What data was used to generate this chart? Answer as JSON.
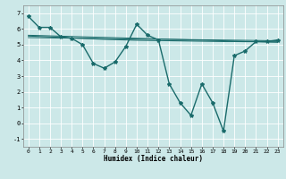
{
  "xlabel": "Humidex (Indice chaleur)",
  "background_color": "#cce8e8",
  "grid_color": "#ffffff",
  "line_color": "#1a6b6b",
  "xlim": [
    -0.5,
    23.5
  ],
  "ylim": [
    -1.5,
    7.5
  ],
  "xticks": [
    0,
    1,
    2,
    3,
    4,
    5,
    6,
    7,
    8,
    9,
    10,
    11,
    12,
    13,
    14,
    15,
    16,
    17,
    18,
    19,
    20,
    21,
    22,
    23
  ],
  "yticks": [
    -1,
    0,
    1,
    2,
    3,
    4,
    5,
    6,
    7
  ],
  "series1_x": [
    0,
    1,
    2,
    3,
    4,
    5,
    6,
    7,
    8,
    9,
    10,
    11,
    12,
    13,
    14,
    15,
    16,
    17,
    18,
    19,
    20,
    21,
    22,
    23
  ],
  "series1_y": [
    6.8,
    6.1,
    6.1,
    5.5,
    5.4,
    5.0,
    3.8,
    3.5,
    3.9,
    4.9,
    6.3,
    5.6,
    5.3,
    2.5,
    1.3,
    0.5,
    2.5,
    1.3,
    -0.5,
    4.3,
    4.6,
    5.2,
    5.2,
    5.3
  ],
  "series2_x": [
    0,
    1,
    2,
    3,
    4,
    5,
    6,
    7,
    8,
    9,
    10,
    11,
    12,
    13,
    14,
    15,
    16,
    17,
    18,
    19,
    20,
    21,
    22,
    23
  ],
  "series2_y": [
    5.55,
    5.52,
    5.49,
    5.46,
    5.43,
    5.4,
    5.37,
    5.34,
    5.32,
    5.3,
    5.28,
    5.27,
    5.26,
    5.25,
    5.24,
    5.23,
    5.22,
    5.21,
    5.2,
    5.2,
    5.19,
    5.19,
    5.18,
    5.18
  ],
  "series3_x": [
    0,
    23
  ],
  "series3_y": [
    5.6,
    5.15
  ],
  "series4_x": [
    0,
    23
  ],
  "series4_y": [
    5.45,
    5.25
  ],
  "markersize": 3,
  "linewidth1": 1.0,
  "linewidth2": 0.8,
  "linewidth3": 0.7,
  "xlabel_fontsize": 5.5,
  "tick_fontsize": 4.5
}
